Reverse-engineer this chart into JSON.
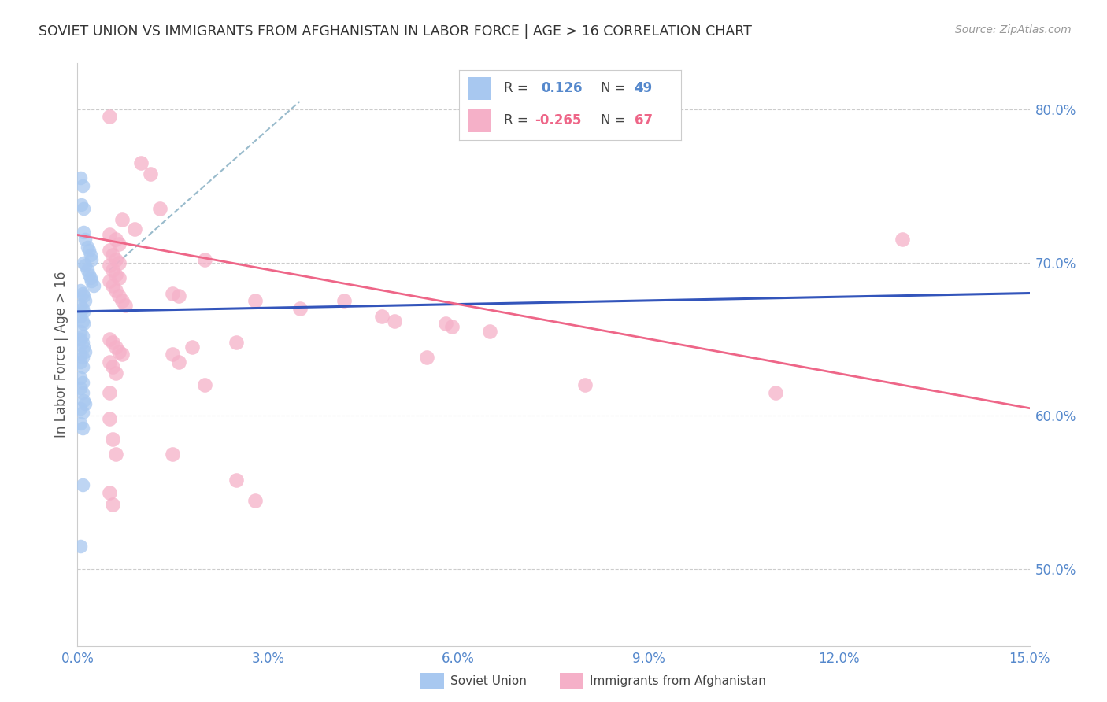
{
  "title": "SOVIET UNION VS IMMIGRANTS FROM AFGHANISTAN IN LABOR FORCE | AGE > 16 CORRELATION CHART",
  "source_text": "Source: ZipAtlas.com",
  "ylabel": "In Labor Force | Age > 16",
  "xlim": [
    0.0,
    15.0
  ],
  "ylim": [
    45.0,
    83.0
  ],
  "yticks": [
    50.0,
    60.0,
    70.0,
    80.0
  ],
  "xticks": [
    0.0,
    3.0,
    6.0,
    9.0,
    12.0,
    15.0
  ],
  "soviet_color": "#a8c8f0",
  "afghan_color": "#f5b0c8",
  "trendline_soviet_color": "#3355bb",
  "trendline_afghan_color": "#ee6688",
  "trendline_dashed_color": "#99bbcc",
  "background_color": "#ffffff",
  "grid_color": "#cccccc",
  "title_color": "#333333",
  "axis_label_color": "#5588cc",
  "soviet_points": [
    [
      0.05,
      75.5
    ],
    [
      0.08,
      75.0
    ],
    [
      0.06,
      73.8
    ],
    [
      0.09,
      73.5
    ],
    [
      0.1,
      72.0
    ],
    [
      0.12,
      71.5
    ],
    [
      0.15,
      71.0
    ],
    [
      0.18,
      70.8
    ],
    [
      0.2,
      70.5
    ],
    [
      0.22,
      70.2
    ],
    [
      0.1,
      70.0
    ],
    [
      0.12,
      69.8
    ],
    [
      0.15,
      69.5
    ],
    [
      0.18,
      69.2
    ],
    [
      0.2,
      69.0
    ],
    [
      0.22,
      68.8
    ],
    [
      0.25,
      68.5
    ],
    [
      0.05,
      68.2
    ],
    [
      0.08,
      68.0
    ],
    [
      0.1,
      67.8
    ],
    [
      0.12,
      67.5
    ],
    [
      0.05,
      67.2
    ],
    [
      0.08,
      67.0
    ],
    [
      0.1,
      66.8
    ],
    [
      0.05,
      66.5
    ],
    [
      0.08,
      66.2
    ],
    [
      0.1,
      66.0
    ],
    [
      0.05,
      65.5
    ],
    [
      0.08,
      65.2
    ],
    [
      0.05,
      65.0
    ],
    [
      0.08,
      64.8
    ],
    [
      0.1,
      64.5
    ],
    [
      0.12,
      64.2
    ],
    [
      0.05,
      64.0
    ],
    [
      0.08,
      63.8
    ],
    [
      0.05,
      63.5
    ],
    [
      0.08,
      63.2
    ],
    [
      0.05,
      62.5
    ],
    [
      0.08,
      62.2
    ],
    [
      0.05,
      61.8
    ],
    [
      0.08,
      61.5
    ],
    [
      0.1,
      61.0
    ],
    [
      0.12,
      60.8
    ],
    [
      0.05,
      60.5
    ],
    [
      0.08,
      60.2
    ],
    [
      0.05,
      59.5
    ],
    [
      0.08,
      59.2
    ],
    [
      0.05,
      51.5
    ],
    [
      0.08,
      55.5
    ]
  ],
  "afghan_points": [
    [
      0.5,
      79.5
    ],
    [
      1.0,
      76.5
    ],
    [
      1.15,
      75.8
    ],
    [
      1.3,
      73.5
    ],
    [
      0.7,
      72.8
    ],
    [
      0.9,
      72.2
    ],
    [
      0.5,
      71.8
    ],
    [
      0.6,
      71.5
    ],
    [
      0.65,
      71.2
    ],
    [
      0.5,
      70.8
    ],
    [
      0.55,
      70.5
    ],
    [
      0.6,
      70.2
    ],
    [
      0.65,
      70.0
    ],
    [
      0.5,
      69.8
    ],
    [
      0.55,
      69.5
    ],
    [
      0.6,
      69.2
    ],
    [
      0.65,
      69.0
    ],
    [
      0.5,
      68.8
    ],
    [
      0.55,
      68.5
    ],
    [
      0.6,
      68.2
    ],
    [
      0.65,
      67.8
    ],
    [
      0.7,
      67.5
    ],
    [
      0.75,
      67.2
    ],
    [
      1.5,
      68.0
    ],
    [
      1.6,
      67.8
    ],
    [
      2.0,
      70.2
    ],
    [
      2.8,
      67.5
    ],
    [
      3.5,
      67.0
    ],
    [
      4.2,
      67.5
    ],
    [
      4.8,
      66.5
    ],
    [
      5.0,
      66.2
    ],
    [
      5.8,
      66.0
    ],
    [
      5.9,
      65.8
    ],
    [
      6.5,
      65.5
    ],
    [
      0.5,
      65.0
    ],
    [
      0.55,
      64.8
    ],
    [
      0.6,
      64.5
    ],
    [
      0.65,
      64.2
    ],
    [
      0.7,
      64.0
    ],
    [
      1.8,
      64.5
    ],
    [
      2.5,
      64.8
    ],
    [
      0.5,
      63.5
    ],
    [
      0.55,
      63.2
    ],
    [
      0.6,
      62.8
    ],
    [
      1.5,
      64.0
    ],
    [
      1.6,
      63.5
    ],
    [
      2.0,
      62.0
    ],
    [
      0.5,
      61.5
    ],
    [
      5.5,
      63.8
    ],
    [
      8.0,
      62.0
    ],
    [
      11.0,
      61.5
    ],
    [
      13.0,
      71.5
    ],
    [
      0.5,
      59.8
    ],
    [
      0.55,
      58.5
    ],
    [
      0.6,
      57.5
    ],
    [
      1.5,
      57.5
    ],
    [
      2.5,
      55.8
    ],
    [
      0.5,
      55.0
    ],
    [
      0.55,
      54.2
    ],
    [
      2.8,
      54.5
    ]
  ],
  "soviet_trend": [
    0.0,
    15.0,
    66.8,
    68.0
  ],
  "afghan_trend": [
    0.0,
    15.0,
    71.8,
    60.5
  ],
  "dash_line": [
    0.5,
    3.5,
    69.5,
    80.5
  ]
}
